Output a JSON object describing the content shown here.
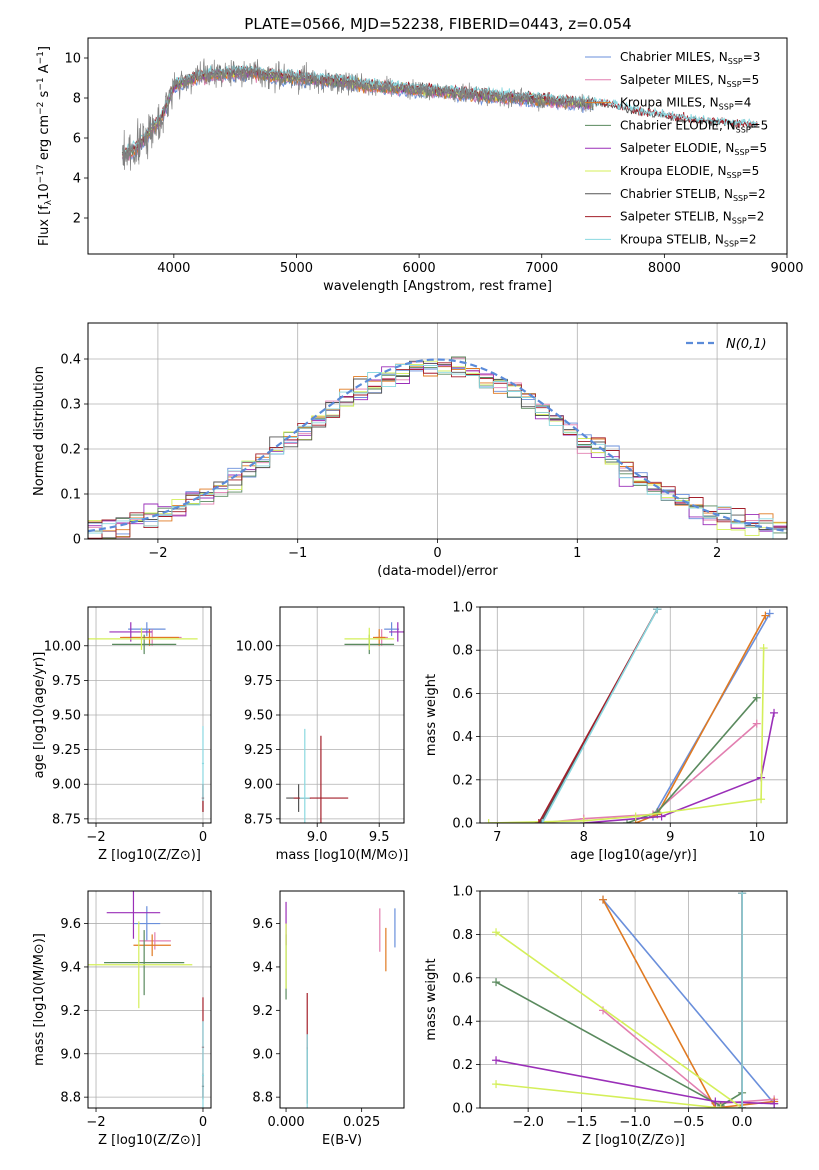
{
  "figure": {
    "title": "PLATE=0566, MJD=52238, FIBERID=0443, z=0.054"
  },
  "colors": {
    "Chabrier MILES": "#6a8fdb",
    "Salpeter MILES": "#e27fb0",
    "Kroupa MILES": "#e07a22",
    "Chabrier ELODIE": "#5a8a5e",
    "Salpeter ELODIE": "#9a2fb8",
    "Kroupa ELODIE": "#d4ef5a",
    "Chabrier STELIB": "#555555",
    "Salpeter STELIB": "#a31f2a",
    "Kroupa STELIB": "#8ad8e0",
    "gaussian": "#5b8bd9",
    "data": "#808080"
  },
  "chart_data": [
    {
      "id": "spectrum",
      "type": "line",
      "xlabel": "wavelength [Angstrom, rest frame]",
      "ylabel_parts": [
        "Flux [f",
        "λ",
        "10",
        "−17",
        " erg cm",
        "−2",
        " s",
        "−1",
        " A",
        "−1",
        "]"
      ],
      "xlim": [
        3300,
        9000
      ],
      "ylim": [
        0.2,
        11
      ],
      "xticks": [
        4000,
        5000,
        6000,
        7000,
        8000,
        9000
      ],
      "yticks": [
        2,
        4,
        6,
        8,
        10
      ],
      "grid": false,
      "legend": "upper right",
      "legend_entries": [
        {
          "model": "Chabrier MILES",
          "text": "Chabrier MILES, N",
          "sub": "SSP",
          "n": "=3"
        },
        {
          "model": "Salpeter MILES",
          "text": "Salpeter MILES, N",
          "sub": "SSP",
          "n": "=5"
        },
        {
          "model": "Kroupa MILES",
          "text": "Kroupa MILES, N",
          "sub": "SSP",
          "n": "=4"
        },
        {
          "model": "Chabrier ELODIE",
          "text": "Chabrier ELODIE, N",
          "sub": "SSP",
          "n": "=5"
        },
        {
          "model": "Salpeter ELODIE",
          "text": "Salpeter ELODIE, N",
          "sub": "SSP",
          "n": "=5"
        },
        {
          "model": "Kroupa ELODIE",
          "text": "Kroupa ELODIE, N",
          "sub": "SSP",
          "n": "=5"
        },
        {
          "model": "Chabrier STELIB",
          "text": "Chabrier STELIB, N",
          "sub": "SSP",
          "n": "=2"
        },
        {
          "model": "Salpeter STELIB",
          "text": "Salpeter STELIB, N",
          "sub": "SSP",
          "n": "=2"
        },
        {
          "model": "Kroupa STELIB",
          "text": "Kroupa STELIB, N",
          "sub": "SSP",
          "n": "=2"
        }
      ],
      "continuum": {
        "x": [
          3600,
          3700,
          3800,
          3900,
          4000,
          4200,
          4400,
          4600,
          4800,
          5000,
          5200,
          5400,
          5600,
          5800,
          6000,
          6200,
          6400,
          6600,
          6800,
          7000,
          7200,
          7400,
          7600,
          7800,
          8000,
          8200,
          8400,
          8600
        ],
        "y": [
          5.2,
          5.5,
          6.3,
          7.0,
          8.6,
          9.1,
          9.2,
          9.3,
          9.1,
          9.0,
          8.9,
          8.8,
          8.6,
          8.5,
          8.4,
          8.3,
          8.2,
          8.1,
          8.0,
          7.9,
          7.8,
          7.7,
          7.5,
          7.2,
          7.0,
          6.8,
          6.7,
          6.6
        ]
      },
      "data_x_range": [
        3580,
        7420
      ],
      "model_x_range": [
        3580,
        8760
      ]
    },
    {
      "id": "residuals",
      "type": "histogram",
      "xlabel": "(data-model)/error",
      "ylabel": "Normed distribution",
      "xlim": [
        -2.5,
        2.5
      ],
      "ylim": [
        0,
        0.48
      ],
      "xticks": [
        -2,
        -1,
        0,
        1,
        2
      ],
      "xtick_labels": [
        "−2",
        "−1",
        "0",
        "1",
        "2"
      ],
      "yticks": [
        0.0,
        0.1,
        0.2,
        0.3,
        0.4
      ],
      "grid": true,
      "bin_width": 0.1,
      "legend": "upper right",
      "legend_label": "N(0,1)"
    },
    {
      "id": "age-vs-Z",
      "type": "scatter",
      "xlabel": "Z [log10(Z/Z⊙)]",
      "ylabel": "age  [log10(age/yr)]",
      "xlim": [
        -2.15,
        0.15
      ],
      "ylim": [
        8.72,
        10.28
      ],
      "xticks": [
        -2,
        0
      ],
      "xtick_labels": [
        "−2",
        "0"
      ],
      "yticks": [
        8.75,
        9.0,
        9.25,
        9.5,
        9.75,
        10.0
      ],
      "ytick_labels": [
        "8.75",
        "9.00",
        "9.25",
        "9.50",
        "9.75",
        "10.00"
      ],
      "grid": true,
      "points": [
        {
          "model": "Chabrier MILES",
          "x": -1.05,
          "y": 10.12,
          "xerr": 0.35,
          "yerr": 0.05
        },
        {
          "model": "Salpeter MILES",
          "x": -0.95,
          "y": 10.06,
          "xerr": 0.55,
          "yerr": 0.06
        },
        {
          "model": "Kroupa MILES",
          "x": -1.0,
          "y": 10.06,
          "xerr": 0.55,
          "yerr": 0.06
        },
        {
          "model": "Chabrier ELODIE",
          "x": -1.1,
          "y": 10.01,
          "xerr": 0.6,
          "yerr": 0.07
        },
        {
          "model": "Salpeter ELODIE",
          "x": -1.35,
          "y": 10.1,
          "xerr": 0.4,
          "yerr": 0.07
        },
        {
          "model": "Kroupa ELODIE",
          "x": -1.15,
          "y": 10.05,
          "xerr": 1.05,
          "yerr": 0.08
        },
        {
          "model": "Chabrier STELIB",
          "x": 0.0,
          "y": 8.9,
          "xerr": 0.02,
          "yerr": 0.1
        },
        {
          "model": "Salpeter STELIB",
          "x": 0.0,
          "y": 8.9,
          "xerr": 0.02,
          "yerr": 0.1
        },
        {
          "model": "Kroupa STELIB",
          "x": 0.0,
          "y": 9.15,
          "xerr": 0.02,
          "yerr": 0.27
        }
      ]
    },
    {
      "id": "age-vs-mass",
      "type": "scatter",
      "xlabel": "mass [log10(M/M⊙)]",
      "xlim": [
        8.7,
        9.7
      ],
      "ylim": [
        8.72,
        10.28
      ],
      "xticks": [
        9.0,
        9.5
      ],
      "xtick_labels": [
        "9.0",
        "9.5"
      ],
      "yticks": [
        8.75,
        9.0,
        9.25,
        9.5,
        9.75,
        10.0
      ],
      "ytick_labels": [
        "8.75",
        "9.00",
        "9.25",
        "9.50",
        "9.75",
        "10.00"
      ],
      "grid": true,
      "points": [
        {
          "model": "Chabrier MILES",
          "x": 9.6,
          "y": 10.12,
          "xerr": 0.06,
          "yerr": 0.05
        },
        {
          "model": "Salpeter MILES",
          "x": 9.52,
          "y": 10.06,
          "xerr": 0.05,
          "yerr": 0.06
        },
        {
          "model": "Kroupa MILES",
          "x": 9.5,
          "y": 10.06,
          "xerr": 0.05,
          "yerr": 0.06
        },
        {
          "model": "Chabrier ELODIE",
          "x": 9.42,
          "y": 10.01,
          "xerr": 0.2,
          "yerr": 0.07
        },
        {
          "model": "Salpeter ELODIE",
          "x": 9.65,
          "y": 10.1,
          "xerr": 0.07,
          "yerr": 0.07
        },
        {
          "model": "Kroupa ELODIE",
          "x": 9.42,
          "y": 10.05,
          "xerr": 0.2,
          "yerr": 0.08
        },
        {
          "model": "Chabrier STELIB",
          "x": 8.85,
          "y": 8.9,
          "xerr": 0.1,
          "yerr": 0.1
        },
        {
          "model": "Salpeter STELIB",
          "x": 9.03,
          "y": 8.9,
          "xerr": 0.22,
          "yerr": 0.45
        },
        {
          "model": "Kroupa STELIB",
          "x": 8.9,
          "y": 8.9,
          "xerr": 0.04,
          "yerr": 0.5
        }
      ]
    },
    {
      "id": "mass-weight-vs-age",
      "type": "line",
      "xlabel": "age  [log10(age/yr)]",
      "ylabel": "mass weight",
      "xlim": [
        6.8,
        10.35
      ],
      "ylim": [
        0,
        1
      ],
      "xticks": [
        7,
        8,
        9,
        10
      ],
      "yticks": [
        0.0,
        0.2,
        0.4,
        0.6,
        0.8,
        1.0
      ],
      "ytick_labels": [
        "0.0",
        "0.2",
        "0.4",
        "0.6",
        "0.8",
        "1.0"
      ],
      "grid": true,
      "series": [
        {
          "model": "Chabrier MILES",
          "x": [
            8.8,
            10.15
          ],
          "y": [
            0.03,
            0.97
          ]
        },
        {
          "model": "Salpeter MILES",
          "x": [
            7.5,
            8.0,
            8.8,
            10.0
          ],
          "y": [
            0.0,
            0.02,
            0.04,
            0.46
          ]
        },
        {
          "model": "Kroupa MILES",
          "x": [
            8.6,
            8.85,
            10.1
          ],
          "y": [
            0.0,
            0.04,
            0.96
          ]
        },
        {
          "model": "Chabrier ELODIE",
          "x": [
            8.5,
            8.85,
            10.0
          ],
          "y": [
            0.0,
            0.05,
            0.58
          ]
        },
        {
          "model": "Salpeter ELODIE",
          "x": [
            8.0,
            8.9,
            10.05,
            10.2
          ],
          "y": [
            0.0,
            0.03,
            0.21,
            0.51
          ]
        },
        {
          "model": "Kroupa ELODIE",
          "x": [
            6.9,
            8.0,
            8.6,
            10.05,
            10.08
          ],
          "y": [
            0.0,
            0.01,
            0.03,
            0.11,
            0.81
          ]
        },
        {
          "model": "Chabrier STELIB",
          "x": [
            7.5,
            8.85
          ],
          "y": [
            0.0,
            0.99
          ]
        },
        {
          "model": "Salpeter STELIB",
          "x": [
            7.48,
            8.85
          ],
          "y": [
            0.0,
            0.99
          ]
        },
        {
          "model": "Kroupa STELIB",
          "x": [
            7.52,
            8.85
          ],
          "y": [
            0.0,
            0.99
          ]
        }
      ]
    },
    {
      "id": "mass-vs-Z",
      "type": "scatter",
      "xlabel": "Z [log10(Z/Z⊙)]",
      "ylabel": "mass [log10(M/M⊙)]",
      "xlim": [
        -2.15,
        0.15
      ],
      "ylim": [
        8.75,
        9.75
      ],
      "xticks": [
        -2,
        0
      ],
      "xtick_labels": [
        "−2",
        "0"
      ],
      "yticks": [
        8.8,
        9.0,
        9.2,
        9.4,
        9.6
      ],
      "ytick_labels": [
        "8.8",
        "9.0",
        "9.2",
        "9.4",
        "9.6"
      ],
      "grid": true,
      "points": [
        {
          "model": "Chabrier MILES",
          "x": -1.05,
          "y": 9.6,
          "xerr": 0.25,
          "yerr": 0.08
        },
        {
          "model": "Salpeter MILES",
          "x": -0.9,
          "y": 9.52,
          "xerr": 0.3,
          "yerr": 0.04
        },
        {
          "model": "Kroupa MILES",
          "x": -0.95,
          "y": 9.5,
          "xerr": 0.35,
          "yerr": 0.05
        },
        {
          "model": "Chabrier ELODIE",
          "x": -1.1,
          "y": 9.42,
          "xerr": 0.75,
          "yerr": 0.15
        },
        {
          "model": "Salpeter ELODIE",
          "x": -1.3,
          "y": 9.65,
          "xerr": 0.5,
          "yerr": 0.12
        },
        {
          "model": "Kroupa ELODIE",
          "x": -1.2,
          "y": 9.41,
          "xerr": 1.0,
          "yerr": 0.2
        },
        {
          "model": "Chabrier STELIB",
          "x": 0.0,
          "y": 8.85,
          "xerr": 0.02,
          "yerr": 0.06
        },
        {
          "model": "Salpeter STELIB",
          "x": 0.0,
          "y": 9.03,
          "xerr": 0.02,
          "yerr": 0.23
        },
        {
          "model": "Kroupa STELIB",
          "x": 0.0,
          "y": 8.9,
          "xerr": 0.02,
          "yerr": 0.25
        }
      ]
    },
    {
      "id": "mass-vs-EBV",
      "type": "scatter",
      "xlabel": "E(B-V)",
      "xlim": [
        -0.002,
        0.039
      ],
      "ylim": [
        8.75,
        9.75
      ],
      "xticks": [
        0.0,
        0.025
      ],
      "xtick_labels": [
        "0.000",
        "0.025"
      ],
      "yticks": [
        8.8,
        9.0,
        9.2,
        9.4,
        9.6
      ],
      "ytick_labels": [
        "8.8",
        "9.0",
        "9.2",
        "9.4",
        "9.6"
      ],
      "grid": false,
      "points": [
        {
          "model": "Chabrier MILES",
          "x": 0.036,
          "y": 9.58,
          "xerr": 0.0,
          "yerr": 0.09
        },
        {
          "model": "Salpeter MILES",
          "x": 0.031,
          "y": 9.57,
          "xerr": 0.0,
          "yerr": 0.1
        },
        {
          "model": "Kroupa MILES",
          "x": 0.033,
          "y": 9.48,
          "xerr": 0.0,
          "yerr": 0.1
        },
        {
          "model": "Chabrier ELODIE",
          "x": 0.0,
          "y": 9.4,
          "xerr": 0.0,
          "yerr": 0.15
        },
        {
          "model": "Salpeter ELODIE",
          "x": 0.0,
          "y": 9.6,
          "xerr": 0.0,
          "yerr": 0.1
        },
        {
          "model": "Kroupa ELODIE",
          "x": 0.0,
          "y": 9.45,
          "xerr": 0.0,
          "yerr": 0.15
        },
        {
          "model": "Chabrier STELIB",
          "x": 0.007,
          "y": 8.9,
          "xerr": 0.0,
          "yerr": 0.13
        },
        {
          "model": "Salpeter STELIB",
          "x": 0.007,
          "y": 9.15,
          "xerr": 0.0,
          "yerr": 0.13
        },
        {
          "model": "Kroupa STELIB",
          "x": 0.007,
          "y": 8.92,
          "xerr": 0.0,
          "yerr": 0.17
        }
      ]
    },
    {
      "id": "mass-weight-vs-Z",
      "type": "line",
      "xlabel": "Z [log10(Z/Z⊙)]",
      "ylabel": "mass weight",
      "xlim": [
        -2.45,
        0.42
      ],
      "ylim": [
        0,
        1
      ],
      "xticks": [
        -2.0,
        -1.5,
        -1.0,
        -0.5,
        0.0
      ],
      "xtick_labels": [
        "−2.0",
        "−1.5",
        "−1.0",
        "−0.5",
        "0.0"
      ],
      "yticks": [
        0.0,
        0.2,
        0.4,
        0.6,
        0.8,
        1.0
      ],
      "ytick_labels": [
        "0.0",
        "0.2",
        "0.4",
        "0.6",
        "0.8",
        "1.0"
      ],
      "grid": true,
      "series": [
        {
          "model": "Chabrier MILES",
          "x": [
            -1.3,
            0.3
          ],
          "y": [
            0.96,
            0.02
          ]
        },
        {
          "model": "Salpeter MILES",
          "x": [
            -1.3,
            -0.25,
            0.3
          ],
          "y": [
            0.45,
            0.02,
            0.04
          ]
        },
        {
          "model": "Kroupa MILES",
          "x": [
            -1.3,
            -0.25,
            0.3
          ],
          "y": [
            0.96,
            0.0,
            0.03
          ]
        },
        {
          "model": "Chabrier ELODIE",
          "x": [
            -2.3,
            -0.2,
            0.0
          ],
          "y": [
            0.58,
            0.01,
            0.07
          ]
        },
        {
          "model": "Salpeter ELODIE",
          "x": [
            -2.3,
            -0.25,
            0.3
          ],
          "y": [
            0.22,
            0.03,
            0.02
          ]
        },
        {
          "model": "Kroupa ELODIE",
          "x": [
            -2.3,
            -0.2,
            0.0,
            -2.3
          ],
          "y": [
            0.11,
            0.0,
            0.0,
            0.81
          ]
        },
        {
          "model": "Chabrier STELIB",
          "x": [
            0.0,
            0.0
          ],
          "y": [
            0.0,
            0.99
          ]
        },
        {
          "model": "Salpeter STELIB",
          "x": [
            0.0,
            0.0
          ],
          "y": [
            0.0,
            0.99
          ]
        },
        {
          "model": "Kroupa STELIB",
          "x": [
            0.0,
            0.0
          ],
          "y": [
            0.0,
            0.99
          ]
        }
      ]
    }
  ]
}
